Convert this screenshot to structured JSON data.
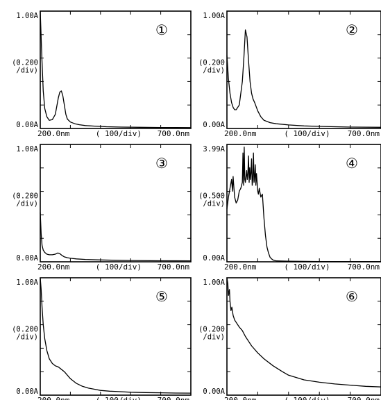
{
  "chart_data": [
    {
      "type": "line",
      "number": "①",
      "y_top": "1.00A",
      "y_bottom": "0.00A",
      "y_div": "(0.200\n/div)",
      "x_left": "200.0nm",
      "x_mid": "( 100/div)",
      "x_right": "700.0nm",
      "xlim": [
        200,
        700
      ],
      "ylim": [
        0,
        1.0
      ],
      "series": [
        {
          "x": [
            200,
            205,
            210,
            215,
            222,
            230,
            240,
            250,
            260,
            265,
            270,
            275,
            280,
            285,
            290,
            300,
            315,
            330,
            350,
            380,
            420,
            470,
            530,
            600,
            700
          ],
          "y": [
            1.0,
            0.62,
            0.32,
            0.17,
            0.1,
            0.07,
            0.075,
            0.12,
            0.26,
            0.31,
            0.32,
            0.28,
            0.2,
            0.12,
            0.08,
            0.055,
            0.04,
            0.032,
            0.025,
            0.02,
            0.015,
            0.012,
            0.01,
            0.008,
            0.007
          ]
        }
      ]
    },
    {
      "type": "line",
      "number": "②",
      "y_top": "1.00A",
      "y_bottom": "0.00A",
      "y_div": "(0.200\n/div)",
      "x_left": "200.0nm",
      "x_mid": "( 100/div)",
      "x_right": "700.0nm",
      "xlim": [
        200,
        700
      ],
      "ylim": [
        0,
        1.0
      ],
      "series": [
        {
          "x": [
            200,
            205,
            210,
            215,
            220,
            225,
            230,
            240,
            250,
            255,
            260,
            265,
            270,
            275,
            280,
            285,
            290,
            300,
            310,
            320,
            340,
            360,
            400,
            450,
            500,
            600,
            700
          ],
          "y": [
            0.62,
            0.42,
            0.3,
            0.22,
            0.18,
            0.16,
            0.16,
            0.2,
            0.4,
            0.6,
            0.84,
            0.78,
            0.58,
            0.4,
            0.3,
            0.25,
            0.22,
            0.15,
            0.1,
            0.07,
            0.05,
            0.04,
            0.03,
            0.022,
            0.018,
            0.012,
            0.01
          ]
        }
      ]
    },
    {
      "type": "line",
      "number": "③",
      "y_top": "1.00A",
      "y_bottom": "0.00A",
      "y_div": "(0.200\n/div)",
      "x_left": "200.0nm",
      "x_mid": "( 100/div)",
      "x_right": "700.0nm",
      "xlim": [
        200,
        700
      ],
      "ylim": [
        0,
        1.0
      ],
      "series": [
        {
          "x": [
            200,
            203,
            206,
            210,
            215,
            222,
            230,
            240,
            250,
            258,
            265,
            272,
            280,
            290,
            300,
            320,
            350,
            400,
            450,
            500,
            600,
            700
          ],
          "y": [
            0.42,
            0.24,
            0.14,
            0.1,
            0.08,
            0.065,
            0.06,
            0.06,
            0.065,
            0.075,
            0.07,
            0.055,
            0.042,
            0.035,
            0.03,
            0.025,
            0.02,
            0.016,
            0.013,
            0.011,
            0.009,
            0.008
          ]
        }
      ]
    },
    {
      "type": "line",
      "number": "④",
      "y_top": "3.99A",
      "y_bottom": "0.00A",
      "y_div": "(0.500\n/div)",
      "x_left": "200.0nm",
      "x_mid": "( 100/div)",
      "x_right": "700.0nm",
      "xlim": [
        200,
        700
      ],
      "ylim": [
        0,
        3.99
      ],
      "series": [
        {
          "x": [
            200,
            205,
            210,
            215,
            218,
            220,
            222,
            225,
            230,
            235,
            240,
            245,
            250,
            252,
            254,
            256,
            258,
            260,
            262,
            264,
            266,
            268,
            270,
            272,
            274,
            276,
            278,
            280,
            282,
            284,
            286,
            288,
            290,
            292,
            294,
            296,
            298,
            300,
            302,
            305,
            310,
            315,
            320,
            325,
            330,
            335,
            340,
            345,
            350,
            360,
            400,
            500,
            600,
            700
          ],
          "y": [
            1.8,
            2.2,
            2.5,
            2.8,
            2.4,
            2.9,
            2.6,
            2.2,
            2.0,
            2.1,
            2.4,
            2.5,
            2.7,
            3.7,
            2.6,
            3.9,
            2.8,
            2.7,
            2.9,
            3.1,
            2.8,
            3.0,
            3.6,
            2.7,
            3.2,
            2.8,
            3.0,
            3.5,
            2.6,
            2.8,
            3.7,
            2.7,
            2.9,
            3.3,
            2.6,
            3.0,
            2.7,
            2.4,
            2.3,
            2.5,
            2.2,
            2.3,
            1.5,
            0.9,
            0.5,
            0.3,
            0.15,
            0.1,
            0.06,
            0.03,
            0.02,
            0.01,
            0.01,
            0.01
          ]
        }
      ]
    },
    {
      "type": "line",
      "number": "⑤",
      "y_top": "1.00A",
      "y_bottom": "0.00A",
      "y_div": "(0.200\n/div)",
      "x_left": "200.0nm",
      "x_mid": "( 100/div)",
      "x_right": "700.0nm",
      "xlim": [
        200,
        700
      ],
      "ylim": [
        0,
        1.0
      ],
      "series": [
        {
          "x": [
            200,
            203,
            206,
            210,
            215,
            222,
            230,
            240,
            250,
            260,
            270,
            280,
            290,
            300,
            320,
            340,
            360,
            380,
            400,
            430,
            460,
            500,
            550,
            600,
            650,
            700
          ],
          "y": [
            1.0,
            0.9,
            0.75,
            0.6,
            0.48,
            0.38,
            0.31,
            0.27,
            0.25,
            0.24,
            0.22,
            0.2,
            0.17,
            0.14,
            0.1,
            0.075,
            0.06,
            0.05,
            0.04,
            0.034,
            0.03,
            0.025,
            0.022,
            0.02,
            0.018,
            0.017
          ]
        }
      ]
    },
    {
      "type": "line",
      "number": "⑥",
      "y_top": "1.00A",
      "y_bottom": "0.00A",
      "y_div": "(0.200\n/div)",
      "x_left": "200.0nm",
      "x_mid": "( 100/div)",
      "x_right": "700.0nm",
      "xlim": [
        200,
        700
      ],
      "ylim": [
        0,
        1.0
      ],
      "series": [
        {
          "x": [
            200,
            203,
            205,
            208,
            210,
            213,
            216,
            220,
            225,
            230,
            240,
            250,
            260,
            270,
            280,
            300,
            320,
            350,
            380,
            400,
            450,
            500,
            550,
            600,
            650,
            700
          ],
          "y": [
            1.0,
            0.95,
            0.85,
            0.9,
            0.8,
            0.72,
            0.75,
            0.68,
            0.64,
            0.62,
            0.58,
            0.55,
            0.5,
            0.46,
            0.42,
            0.36,
            0.31,
            0.25,
            0.2,
            0.17,
            0.13,
            0.11,
            0.095,
            0.085,
            0.075,
            0.07
          ]
        }
      ]
    }
  ]
}
